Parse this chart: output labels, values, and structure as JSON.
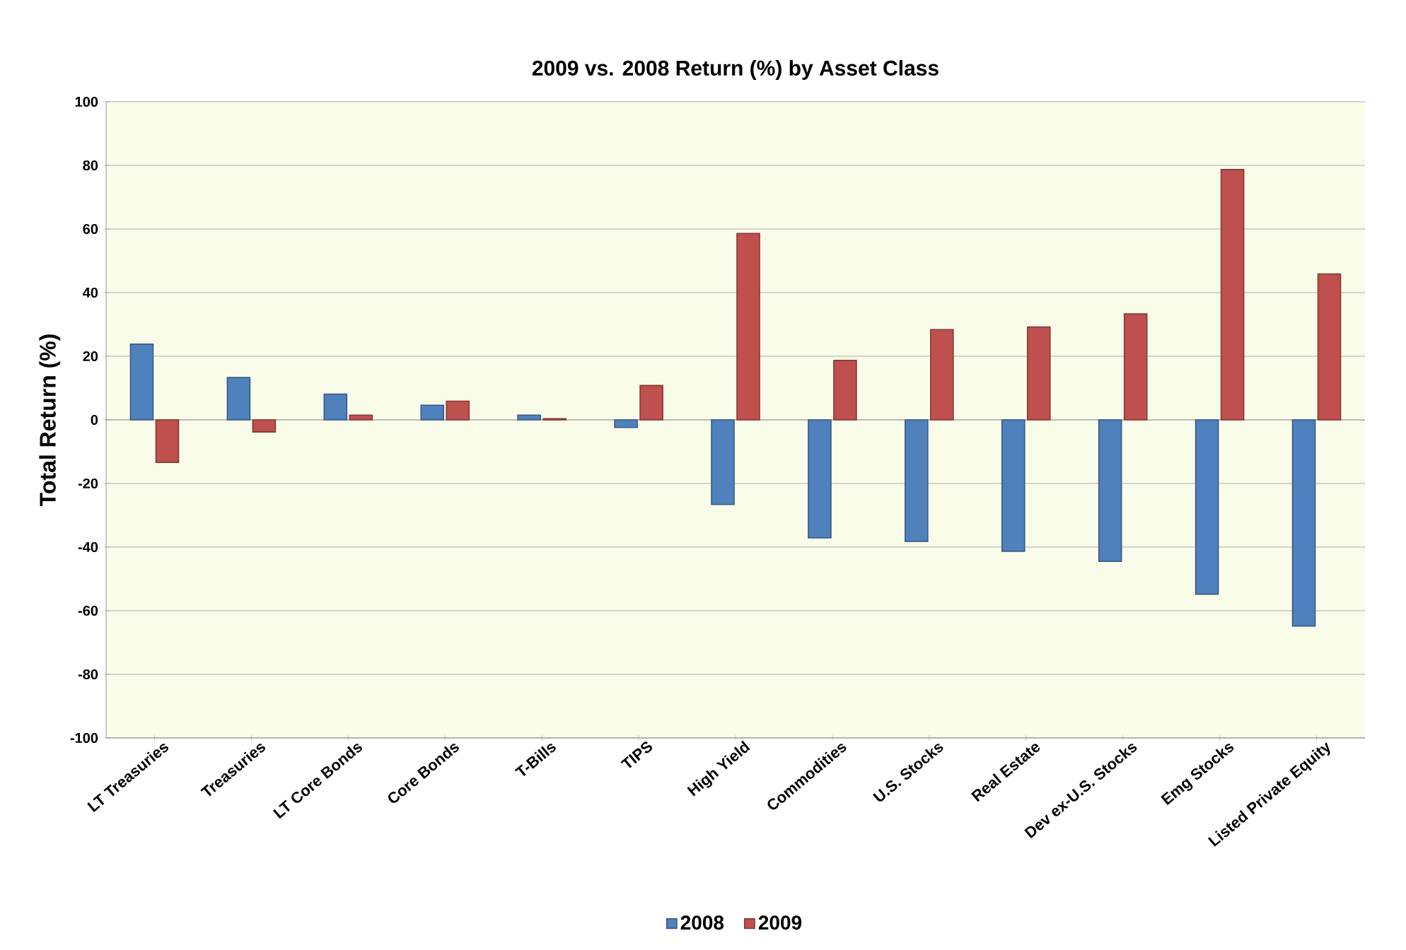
{
  "chart_data": {
    "type": "bar",
    "title": "2009 vs. 2008 Return (%) by Asset Class",
    "ylabel": "Total Return (%)",
    "categories": [
      "LT Treasuries",
      "Treasuries",
      "LT Core Bonds",
      "Core Bonds",
      "T-Bills",
      "TIPS",
      "High Yield",
      "Commodities",
      "U.S. Stocks",
      "Real Estate",
      "Dev ex-U.S. Stocks",
      "Emg Stocks",
      "Listed Private Equity"
    ],
    "series": [
      {
        "name": "2008",
        "color": "#4f81bd",
        "values": [
          23.8,
          13.3,
          8.1,
          4.6,
          1.5,
          -2.4,
          -26.6,
          -37.1,
          -38.2,
          -41.3,
          -44.5,
          -54.8,
          -64.8
        ]
      },
      {
        "name": "2009",
        "color": "#c0504d",
        "values": [
          -13.4,
          -3.8,
          1.5,
          5.9,
          0.4,
          10.8,
          58.6,
          18.7,
          28.4,
          29.2,
          33.3,
          78.7,
          45.9
        ]
      }
    ],
    "ylim": [
      -100,
      100
    ],
    "yticks": [
      -100,
      -80,
      -60,
      -40,
      -20,
      0,
      20,
      40,
      60,
      80,
      100
    ],
    "grid": "y",
    "legend": "bottom"
  }
}
